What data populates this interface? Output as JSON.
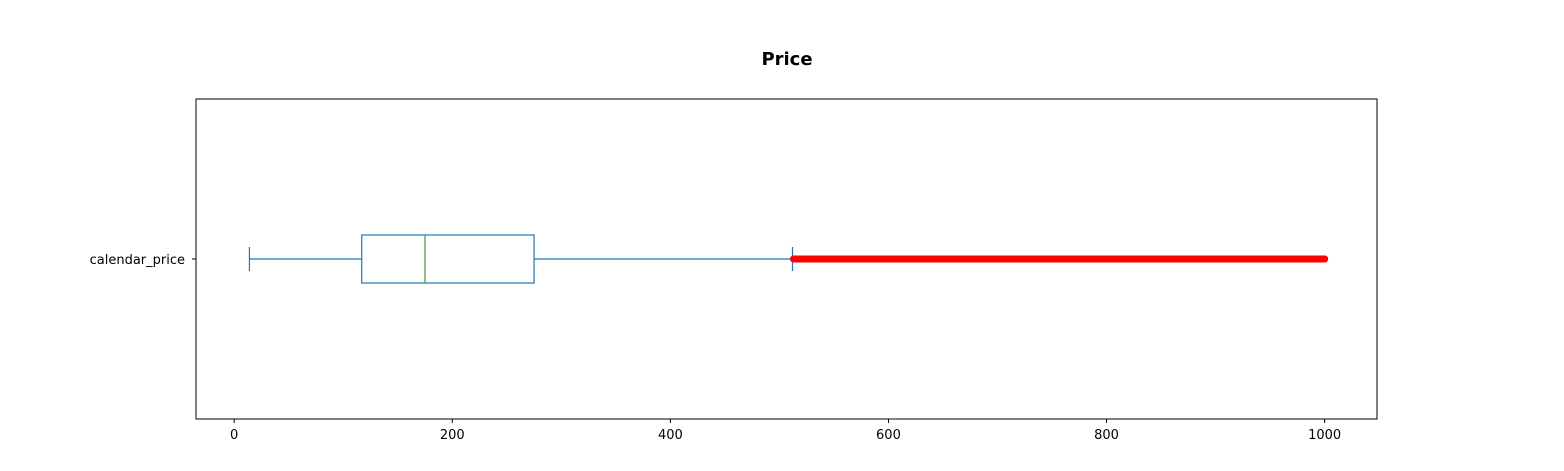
{
  "chart_data": {
    "type": "boxplot",
    "orientation": "horizontal",
    "title": "Price",
    "xlabel": "",
    "ylabel": "",
    "categories": [
      "calendar_price"
    ],
    "xlim": [
      -35,
      1048
    ],
    "xticks": [
      0,
      200,
      400,
      600,
      800,
      1000
    ],
    "grid": false,
    "boxes": [
      {
        "label": "calendar_price",
        "whisker_low": 14,
        "q1": 117,
        "median": 175,
        "q3": 275,
        "whisker_high": 512,
        "outliers_range": [
          513,
          1000
        ]
      }
    ],
    "colors": {
      "box": "#1f77b4",
      "median": "#2ca02c",
      "outliers": "#ff0000"
    }
  }
}
